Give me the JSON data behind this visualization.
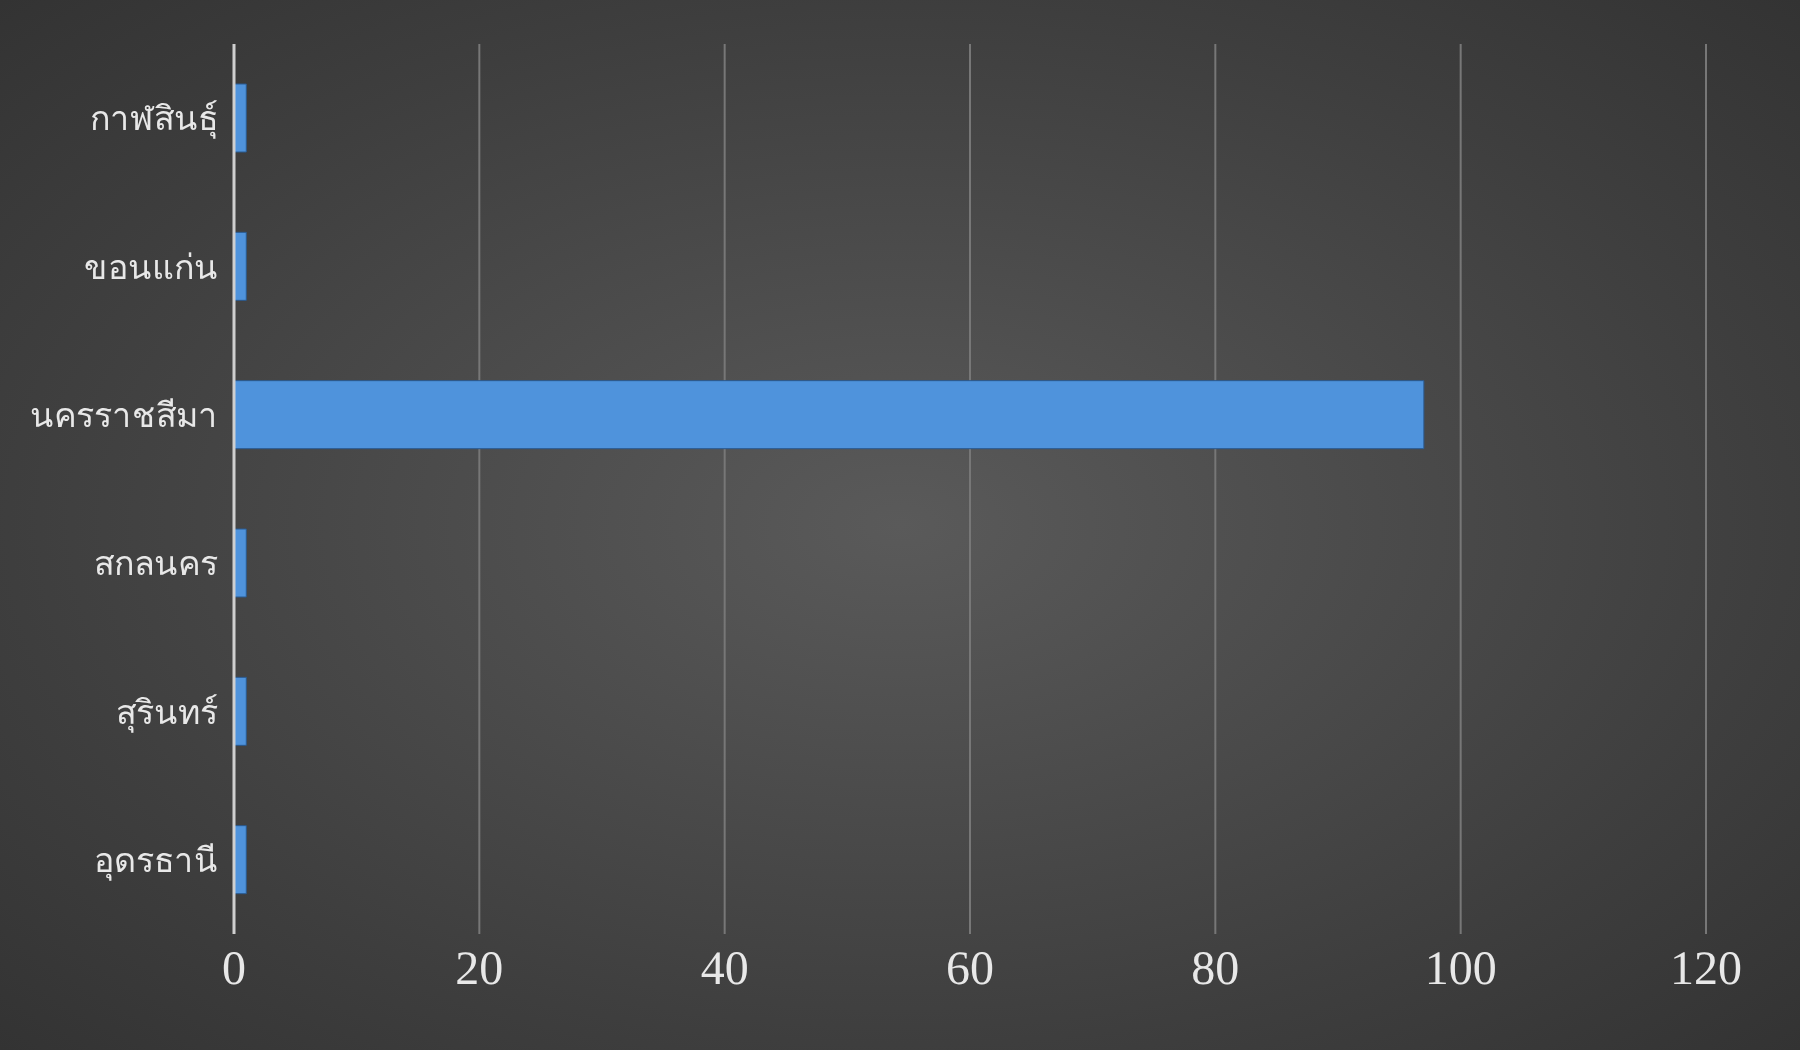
{
  "chart_data": {
    "type": "bar",
    "orientation": "horizontal",
    "categories": [
      "กาฬสินธุ์",
      "ขอนแก่น",
      "นครราชสีมา",
      "สกลนคร",
      "สุรินทร์",
      "อุดรธานี"
    ],
    "values": [
      1,
      1,
      97,
      1,
      1,
      1
    ],
    "color": "#4f93dc",
    "xlim": [
      0,
      120
    ],
    "xticks": [
      0,
      20,
      40,
      60,
      80,
      100,
      120
    ],
    "grid": "x"
  }
}
